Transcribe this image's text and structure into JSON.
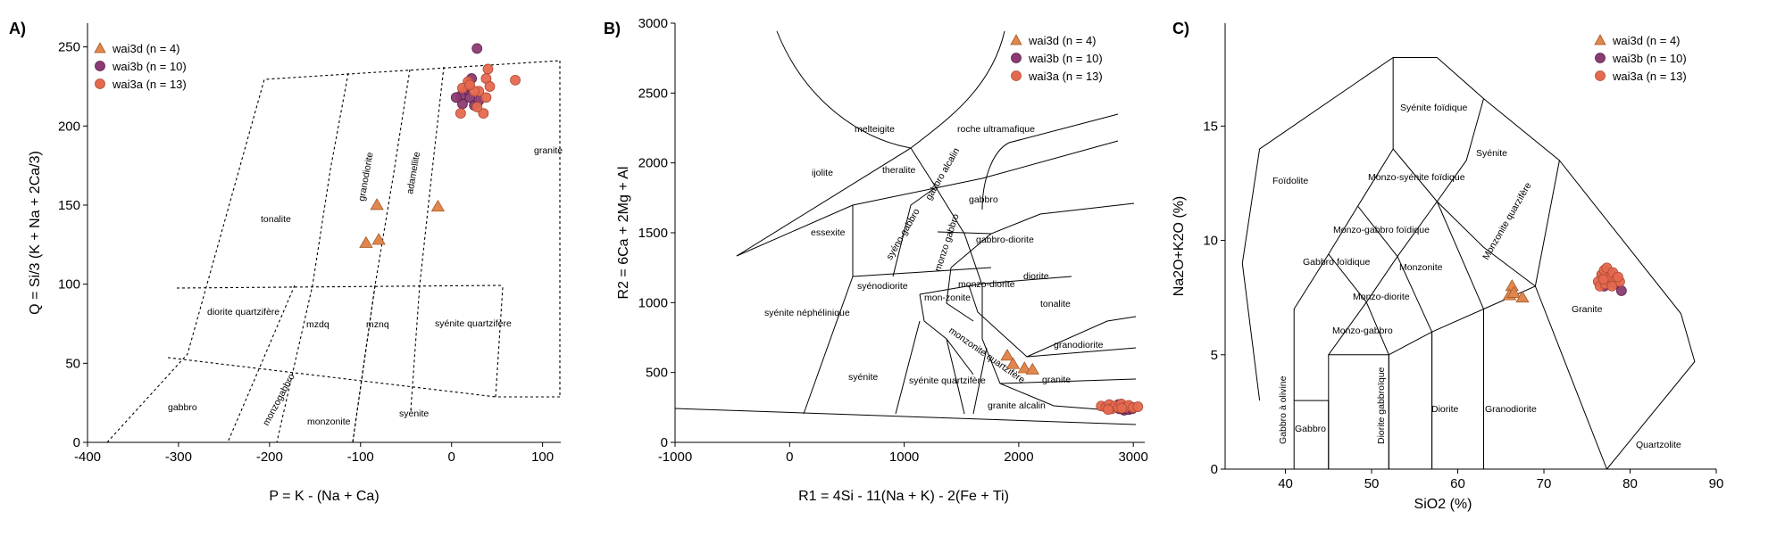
{
  "colors": {
    "wai3d": "#e0874e",
    "wai3b": "#8b3b72",
    "wai3a": "#e5694f",
    "frame": "#000000"
  },
  "chart_data": [
    {
      "panel_label": "A)",
      "type": "scatter",
      "xlabel": "P = K - (Na + Ca)",
      "ylabel": "Q = Si/3 (K + Na + 2Ca/3)",
      "xlim": [
        -400,
        120
      ],
      "ylim": [
        0,
        265
      ],
      "xticks": [
        -400,
        -300,
        -200,
        -100,
        0,
        100
      ],
      "yticks": [
        0,
        50,
        100,
        150,
        200,
        250
      ],
      "legend": {
        "position": "top-left"
      },
      "series": [
        {
          "name": "wai3d (n = 4)",
          "marker": "triangle",
          "points": [
            [
              -82,
              150
            ],
            [
              -15,
              149
            ],
            [
              -80,
              128
            ],
            [
              -94,
              126
            ]
          ]
        },
        {
          "name": "wai3b (n = 10)",
          "marker": "circle",
          "points": [
            [
              28,
              249
            ],
            [
              15,
              222
            ],
            [
              20,
              218
            ],
            [
              10,
              219
            ],
            [
              25,
              213
            ],
            [
              18,
              225
            ],
            [
              12,
              214
            ],
            [
              30,
              216
            ],
            [
              22,
              230
            ],
            [
              5,
              218
            ]
          ]
        },
        {
          "name": "wai3a (n = 13)",
          "marker": "circle",
          "points": [
            [
              40,
              236
            ],
            [
              38,
              230
            ],
            [
              42,
              225
            ],
            [
              70,
              229
            ],
            [
              10,
              208
            ],
            [
              35,
              208
            ],
            [
              30,
              222
            ],
            [
              18,
              228
            ],
            [
              25,
              222
            ],
            [
              12,
              224
            ],
            [
              38,
              218
            ],
            [
              28,
              212
            ],
            [
              20,
              226
            ]
          ]
        }
      ],
      "field_labels": [
        "granite",
        "tonalite",
        "granodiorite",
        "adamellite",
        "diorite quartzifère",
        "mzdq",
        "mznq",
        "syénite quartzifère",
        "gabbro",
        "monzogabbro",
        "monzonite",
        "syénite"
      ]
    },
    {
      "panel_label": "B)",
      "type": "scatter",
      "xlabel": "R1 = 4Si - 11(Na + K) - 2(Fe + Ti)",
      "ylabel": "R2 = 6Ca + 2Mg + Al",
      "xlim": [
        -1000,
        3100
      ],
      "ylim": [
        0,
        3000
      ],
      "xticks": [
        -1000,
        0,
        1000,
        2000,
        3000
      ],
      "yticks": [
        0,
        500,
        1000,
        1500,
        2000,
        2500,
        3000
      ],
      "legend": {
        "position": "top-right"
      },
      "series": [
        {
          "name": "wai3d (n = 4)",
          "marker": "triangle",
          "points": [
            [
              1900,
              620
            ],
            [
              1950,
              560
            ],
            [
              2050,
              530
            ],
            [
              2120,
              520
            ]
          ]
        },
        {
          "name": "wai3b (n = 10)",
          "marker": "circle",
          "points": [
            [
              2850,
              250
            ],
            [
              2880,
              240
            ],
            [
              2900,
              260
            ],
            [
              2920,
              230
            ],
            [
              2950,
              250
            ],
            [
              2870,
              270
            ],
            [
              2910,
              240
            ],
            [
              2960,
              235
            ],
            [
              2820,
              250
            ],
            [
              2990,
              240
            ]
          ]
        },
        {
          "name": "wai3a (n = 13)",
          "marker": "circle",
          "points": [
            [
              2720,
              260
            ],
            [
              2760,
              250
            ],
            [
              2790,
              270
            ],
            [
              2810,
              240
            ],
            [
              2840,
              260
            ],
            [
              2870,
              250
            ],
            [
              2895,
              275
            ],
            [
              2930,
              250
            ],
            [
              2960,
              265
            ],
            [
              3000,
              250
            ],
            [
              3040,
              255
            ],
            [
              2780,
              235
            ],
            [
              2900,
              245
            ]
          ]
        }
      ],
      "field_labels": [
        "melteigite",
        "roche ultramafique",
        "ijolite",
        "theralite",
        "gabbro alcalin",
        "gabbro",
        "essexite",
        "syéno-gabbro",
        "monzo gabbro",
        "gabbro-diorite",
        "syénodiorite",
        "monzo-diorite",
        "diorite",
        "mon-zonite",
        "tonalite",
        "syénite néphélinique",
        "monzonite quartzifère",
        "granodiorite",
        "syénite",
        "syénite quartzifère",
        "granite",
        "granite alcalin"
      ]
    },
    {
      "panel_label": "C)",
      "type": "scatter",
      "xlabel": "SiO2 (%)",
      "ylabel": "Na2O+K2O (%)",
      "xlim": [
        33,
        90
      ],
      "ylim": [
        0,
        19.5
      ],
      "xticks": [
        40,
        50,
        60,
        70,
        80,
        90
      ],
      "yticks": [
        0,
        5,
        10,
        15
      ],
      "legend": {
        "position": "top-right"
      },
      "series": [
        {
          "name": "wai3d (n = 4)",
          "marker": "triangle",
          "points": [
            [
              66.3,
              8.0
            ],
            [
              66.0,
              7.6
            ],
            [
              66.5,
              7.7
            ],
            [
              67.5,
              7.5
            ]
          ]
        },
        {
          "name": "wai3b (n = 10)",
          "marker": "circle",
          "points": [
            [
              77.5,
              8.3
            ],
            [
              77.2,
              8.1
            ],
            [
              77.8,
              8.4
            ],
            [
              78.0,
              8.2
            ],
            [
              76.8,
              8.5
            ],
            [
              77.4,
              8.3
            ],
            [
              78.3,
              8.1
            ],
            [
              79.0,
              7.8
            ],
            [
              77.0,
              8.0
            ],
            [
              77.6,
              8.6
            ]
          ]
        },
        {
          "name": "wai3a (n = 13)",
          "marker": "circle",
          "points": [
            [
              76.3,
              8.2
            ],
            [
              76.7,
              8.5
            ],
            [
              77.0,
              8.7
            ],
            [
              77.3,
              8.8
            ],
            [
              77.7,
              8.4
            ],
            [
              78.0,
              8.6
            ],
            [
              78.4,
              8.3
            ],
            [
              78.8,
              8.2
            ],
            [
              76.5,
              8.0
            ],
            [
              77.1,
              8.1
            ],
            [
              77.9,
              8.0
            ],
            [
              78.6,
              8.4
            ],
            [
              76.9,
              8.3
            ]
          ]
        }
      ],
      "field_labels": [
        "Foïdolite",
        "Syénite foïdique",
        "Syénite",
        "Monzo-syénite foïdique",
        "Monzo-gabbro foïdique",
        "Monzonite quarzifère",
        "Gabbro foïdique",
        "Monzonite",
        "Monzo-diorite",
        "Monzo-gabbro",
        "Granite",
        "Gabbro à olivine",
        "Gabbro",
        "Diorite gabbroïque",
        "Diorite",
        "Granodiorite",
        "Quartzolite"
      ]
    }
  ]
}
